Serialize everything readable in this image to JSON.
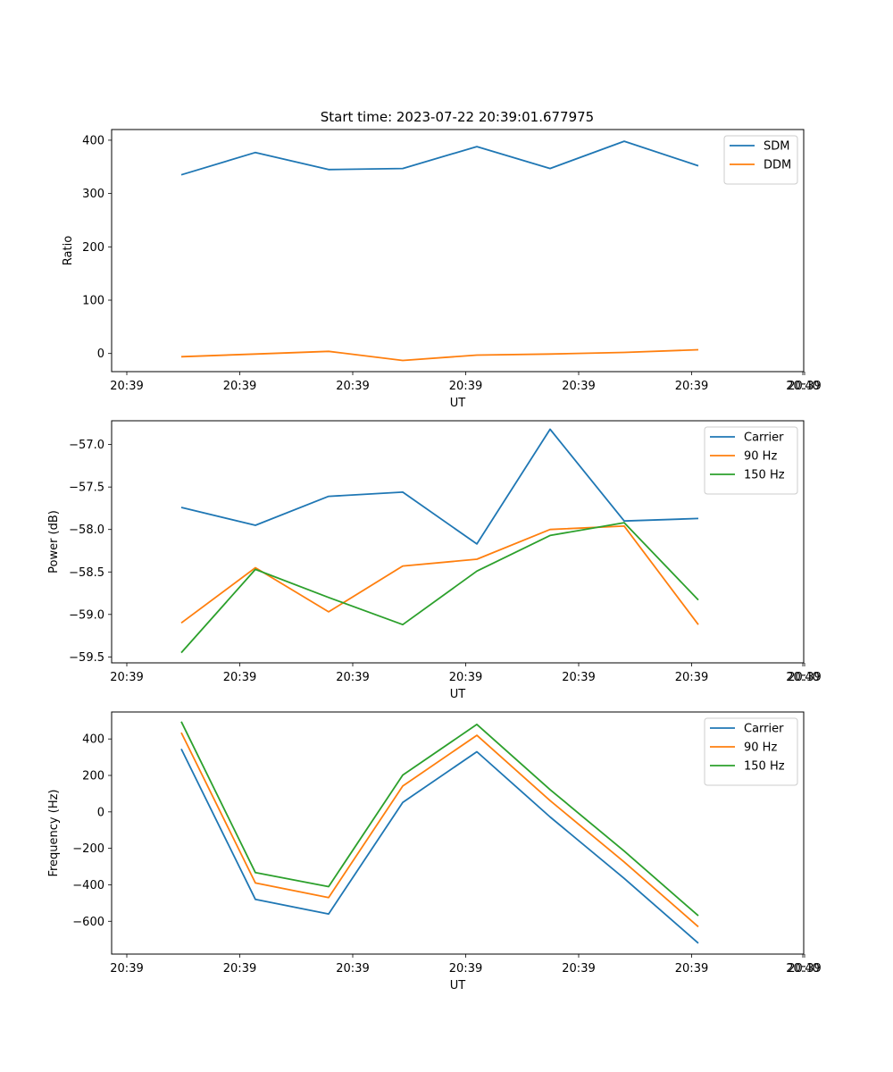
{
  "figure_title": "Start time: 2023-07-22 20:39:01.677975",
  "colors": {
    "blue": "#1f77b4",
    "orange": "#ff7f0e",
    "green": "#2ca02c"
  },
  "chart_data": [
    {
      "type": "line",
      "title": "Start time: 2023-07-22 20:39:01.677975",
      "xlabel": "UT",
      "ylabel": "Ratio",
      "x_tick_labels": [
        "20:39",
        "20:39",
        "20:39",
        "20:39",
        "20:39",
        "20:39",
        "20:39",
        "20:40"
      ],
      "y_ticks": [
        0,
        100,
        200,
        300,
        400
      ],
      "ylim": [
        -34,
        420
      ],
      "legend_position": "top-right",
      "series": [
        {
          "name": "SDM",
          "color": "#1f77b4",
          "values": [
            335,
            377,
            345,
            347,
            388,
            347,
            398,
            352
          ]
        },
        {
          "name": "DDM",
          "color": "#ff7f0e",
          "values": [
            -6,
            -1,
            4,
            -13,
            -3,
            -1,
            2,
            7
          ]
        }
      ]
    },
    {
      "type": "line",
      "title": "",
      "xlabel": "UT",
      "ylabel": "Power (dB)",
      "x_tick_labels": [
        "20:39",
        "20:39",
        "20:39",
        "20:39",
        "20:39",
        "20:39",
        "20:39",
        "20:40"
      ],
      "y_ticks": [
        -57.0,
        -57.5,
        -58.0,
        -58.5,
        -59.0,
        -59.5
      ],
      "y_tick_labels": [
        "−57.0",
        "−57.5",
        "−58.0",
        "−58.5",
        "−59.0",
        "−59.5"
      ],
      "ylim": [
        -59.57,
        -56.72
      ],
      "legend_position": "top-right",
      "series": [
        {
          "name": "Carrier",
          "color": "#1f77b4",
          "values": [
            -57.74,
            -57.95,
            -57.61,
            -57.56,
            -58.17,
            -56.82,
            -57.9,
            -57.87
          ]
        },
        {
          "name": "90 Hz",
          "color": "#ff7f0e",
          "values": [
            -59.1,
            -58.45,
            -58.97,
            -58.43,
            -58.35,
            -58.0,
            -57.96,
            -59.12
          ]
        },
        {
          "name": "150 Hz",
          "color": "#2ca02c",
          "values": [
            -59.45,
            -58.47,
            -58.8,
            -59.12,
            -58.49,
            -58.07,
            -57.92,
            -58.83
          ]
        }
      ]
    },
    {
      "type": "line",
      "title": "",
      "xlabel": "UT",
      "ylabel": "Frequency (Hz)",
      "x_tick_labels": [
        "20:39",
        "20:39",
        "20:39",
        "20:39",
        "20:39",
        "20:39",
        "20:39",
        "20:40"
      ],
      "y_ticks": [
        400,
        200,
        0,
        -200,
        -400,
        -600
      ],
      "y_tick_labels": [
        "400",
        "200",
        "0",
        "−200",
        "−400",
        "−600"
      ],
      "ylim": [
        -780,
        548
      ],
      "legend_position": "top-right",
      "series": [
        {
          "name": "Carrier",
          "color": "#1f77b4",
          "values": [
            345,
            -480,
            -560,
            52,
            330,
            -28,
            -365,
            -720
          ]
        },
        {
          "name": "90 Hz",
          "color": "#ff7f0e",
          "values": [
            435,
            -390,
            -470,
            142,
            420,
            62,
            -275,
            -630
          ]
        },
        {
          "name": "150 Hz",
          "color": "#2ca02c",
          "values": [
            495,
            -333,
            -410,
            202,
            480,
            122,
            -215,
            -570
          ]
        }
      ]
    }
  ]
}
